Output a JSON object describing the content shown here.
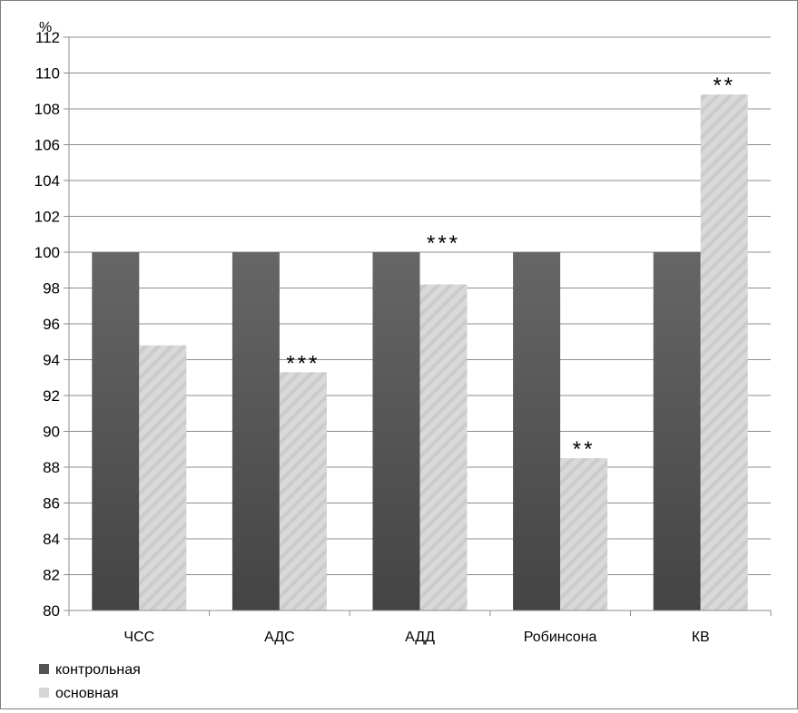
{
  "chart_data": {
    "type": "bar",
    "unit": "%",
    "categories": [
      "ЧСС",
      "АДС",
      "АДД",
      "Робинсона",
      "КВ"
    ],
    "series": [
      {
        "name": "контрольная",
        "values": [
          100,
          100,
          100,
          100,
          100
        ],
        "color": "#555555"
      },
      {
        "name": "основная",
        "values": [
          94.8,
          93.3,
          98.2,
          88.5,
          108.8
        ],
        "color": "#d6d6d6"
      }
    ],
    "annotations": [
      "",
      "***",
      "***",
      "**",
      "**"
    ],
    "ylim": [
      80,
      112
    ],
    "yticks": [
      80,
      82,
      84,
      86,
      88,
      90,
      92,
      94,
      96,
      98,
      100,
      102,
      104,
      106,
      108,
      110,
      112
    ],
    "grid": true,
    "legend_position": "bottom-left"
  }
}
